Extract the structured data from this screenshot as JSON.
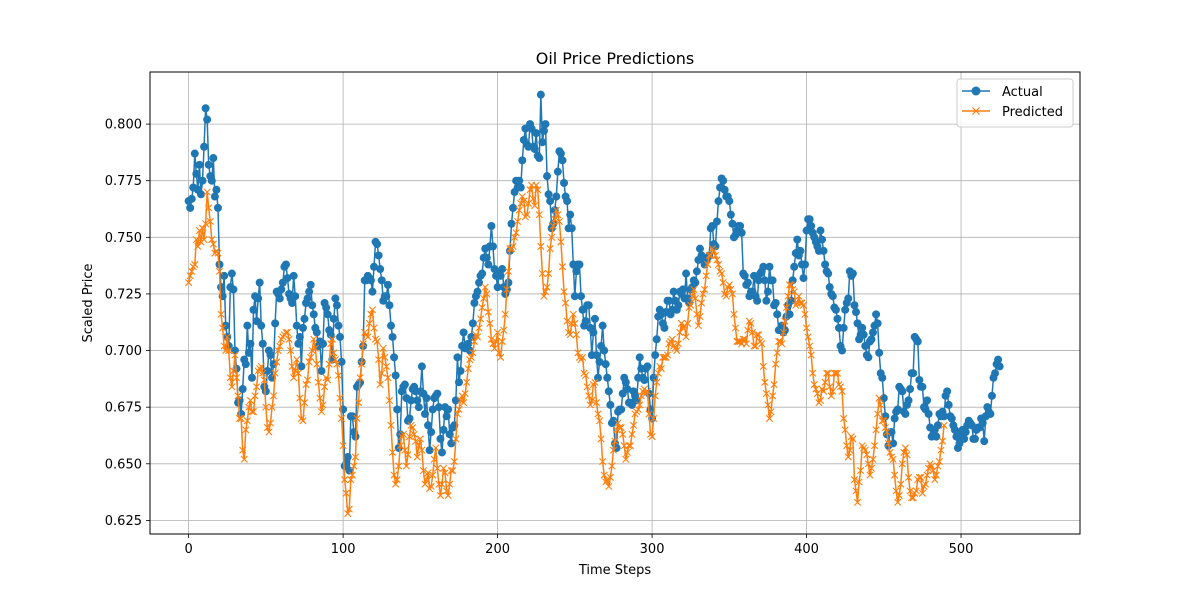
{
  "chart_data": {
    "type": "line",
    "title": "Oil Price Predictions",
    "xlabel": "Time Steps",
    "ylabel": "Scaled Price",
    "xlim": [
      -25,
      577
    ],
    "ylim": [
      0.619,
      0.823
    ],
    "xticks": [
      0,
      100,
      200,
      300,
      400,
      500
    ],
    "yticks": [
      0.625,
      0.65,
      0.675,
      0.7,
      0.725,
      0.75,
      0.775,
      0.8
    ],
    "ytick_labels": [
      "0.625",
      "0.650",
      "0.675",
      "0.700",
      "0.725",
      "0.750",
      "0.775",
      "0.800"
    ],
    "grid": true,
    "legend_position": "top-right",
    "x_step": 1,
    "series": [
      {
        "name": "Actual",
        "marker": "circle",
        "color": "#1f77b4",
        "values": [
          0.766,
          0.763,
          0.767,
          0.772,
          0.787,
          0.778,
          0.771,
          0.782,
          0.769,
          0.775,
          0.79,
          0.807,
          0.802,
          0.782,
          0.777,
          0.775,
          0.785,
          0.768,
          0.771,
          0.763,
          0.738,
          0.728,
          0.724,
          0.733,
          0.711,
          0.706,
          0.702,
          0.728,
          0.734,
          0.727,
          0.7,
          0.692,
          0.677,
          0.678,
          0.672,
          0.683,
          0.696,
          0.694,
          0.711,
          0.699,
          0.703,
          0.688,
          0.718,
          0.724,
          0.713,
          0.723,
          0.73,
          0.711,
          0.703,
          0.684,
          0.682,
          0.691,
          0.7,
          0.698,
          0.688,
          0.694,
          0.712,
          0.726,
          0.725,
          0.723,
          0.727,
          0.73,
          0.737,
          0.738,
          0.732,
          0.725,
          0.723,
          0.721,
          0.733,
          0.724,
          0.711,
          0.703,
          0.706,
          0.693,
          0.71,
          0.714,
          0.721,
          0.723,
          0.726,
          0.729,
          0.72,
          0.716,
          0.71,
          0.708,
          0.702,
          0.704,
          0.691,
          0.703,
          0.721,
          0.719,
          0.716,
          0.709,
          0.707,
          0.696,
          0.714,
          0.723,
          0.72,
          0.711,
          0.706,
          0.695,
          0.674,
          0.649,
          0.65,
          0.653,
          0.647,
          0.671,
          0.671,
          0.664,
          0.662,
          0.684,
          0.685,
          0.686,
          0.695,
          0.702,
          0.731,
          0.731,
          0.733,
          0.732,
          0.731,
          0.726,
          0.737,
          0.748,
          0.747,
          0.742,
          0.736,
          0.731,
          0.722,
          0.724,
          0.724,
          0.729,
          0.72,
          0.711,
          0.706,
          0.697,
          0.689,
          0.674,
          0.657,
          0.663,
          0.682,
          0.684,
          0.685,
          0.679,
          0.669,
          0.67,
          0.678,
          0.683,
          0.684,
          0.682,
          0.678,
          0.675,
          0.682,
          0.693,
          0.681,
          0.672,
          0.679,
          0.667,
          0.656,
          0.664,
          0.674,
          0.679,
          0.68,
          0.681,
          0.675,
          0.661,
          0.655,
          0.665,
          0.675,
          0.671,
          0.674,
          0.663,
          0.659,
          0.666,
          0.667,
          0.678,
          0.697,
          0.686,
          0.691,
          0.702,
          0.708,
          0.701,
          0.701,
          0.703,
          0.7,
          0.706,
          0.712,
          0.721,
          0.724,
          0.726,
          0.73,
          0.733,
          0.734,
          0.741,
          0.745,
          0.741,
          0.738,
          0.746,
          0.755,
          0.746,
          0.736,
          0.733,
          0.728,
          0.734,
          0.733,
          0.736,
          0.728,
          0.725,
          0.727,
          0.73,
          0.744,
          0.756,
          0.763,
          0.77,
          0.775,
          0.772,
          0.775,
          0.772,
          0.784,
          0.793,
          0.798,
          0.791,
          0.79,
          0.8,
          0.798,
          0.79,
          0.789,
          0.796,
          0.786,
          0.785,
          0.813,
          0.792,
          0.797,
          0.8,
          0.777,
          0.769,
          0.766,
          0.754,
          0.756,
          0.762,
          0.768,
          0.779,
          0.788,
          0.787,
          0.784,
          0.774,
          0.768,
          0.766,
          0.754,
          0.76,
          0.754,
          0.738,
          0.724,
          0.735,
          0.738,
          0.738,
          0.724,
          0.718,
          0.711,
          0.713,
          0.72,
          0.72,
          0.71,
          0.698,
          0.708,
          0.714,
          0.698,
          0.688,
          0.695,
          0.702,
          0.711,
          0.7,
          0.694,
          0.688,
          0.682,
          0.676,
          0.668,
          0.669,
          0.659,
          0.657,
          0.673,
          0.674,
          0.674,
          0.681,
          0.688,
          0.686,
          0.683,
          0.677,
          0.677,
          0.676,
          0.682,
          0.68,
          0.678,
          0.688,
          0.697,
          0.692,
          0.688,
          0.687,
          0.692,
          0.693,
          0.681,
          0.674,
          0.67,
          0.688,
          0.698,
          0.705,
          0.715,
          0.718,
          0.716,
          0.712,
          0.71,
          0.717,
          0.722,
          0.722,
          0.716,
          0.718,
          0.726,
          0.722,
          0.718,
          0.72,
          0.726,
          0.725,
          0.727,
          0.723,
          0.734,
          0.723,
          0.721,
          0.727,
          0.728,
          0.731,
          0.73,
          0.735,
          0.74,
          0.745,
          0.742,
          0.741,
          0.738,
          0.74,
          0.741,
          0.742,
          0.754,
          0.755,
          0.747,
          0.746,
          0.757,
          0.766,
          0.772,
          0.776,
          0.775,
          0.771,
          0.768,
          0.768,
          0.766,
          0.76,
          0.756,
          0.75,
          0.751,
          0.753,
          0.755,
          0.755,
          0.752,
          0.734,
          0.733,
          0.729,
          0.73,
          0.724,
          0.726,
          0.726,
          0.733,
          0.724,
          0.722,
          0.731,
          0.734,
          0.735,
          0.737,
          0.731,
          0.722,
          0.726,
          0.737,
          0.731,
          0.731,
          0.72,
          0.721,
          0.716,
          0.709,
          0.709,
          0.711,
          0.708,
          0.709,
          0.715,
          0.72,
          0.716,
          0.722,
          0.731,
          0.737,
          0.743,
          0.749,
          0.742,
          0.744,
          0.738,
          0.732,
          0.738,
          0.753,
          0.758,
          0.758,
          0.755,
          0.752,
          0.75,
          0.748,
          0.746,
          0.744,
          0.753,
          0.749,
          0.744,
          0.738,
          0.735,
          0.734,
          0.728,
          0.725,
          0.724,
          0.719,
          0.718,
          0.714,
          0.71,
          0.702,
          0.7,
          0.71,
          0.718,
          0.721,
          0.723,
          0.735,
          0.733,
          0.734,
          0.72,
          0.717,
          0.712,
          0.705,
          0.707,
          0.71,
          0.707,
          0.702,
          0.698,
          0.697,
          0.704,
          0.705,
          0.708,
          0.711,
          0.716,
          0.712,
          0.699,
          0.69,
          0.688,
          0.679,
          0.671,
          0.663,
          0.658,
          0.664,
          0.664,
          0.659,
          0.67,
          0.673,
          0.674,
          0.684,
          0.683,
          0.682,
          0.673,
          0.672,
          0.676,
          0.678,
          0.683,
          0.69,
          0.69,
          0.706,
          0.705,
          0.704,
          0.687,
          0.684,
          0.684,
          0.675,
          0.674,
          0.678,
          0.672,
          0.666,
          0.662,
          0.663,
          0.665,
          0.662,
          0.667,
          0.672,
          0.671,
          0.673,
          0.671,
          0.68,
          0.682,
          0.676,
          0.671,
          0.67,
          0.667,
          0.665,
          0.662,
          0.657,
          0.659,
          0.664,
          0.665,
          0.661,
          0.664,
          0.667,
          0.669,
          0.668,
          0.667,
          0.661,
          0.661,
          0.665,
          0.666,
          0.666,
          0.67,
          0.668,
          0.66,
          0.671,
          0.675,
          0.673,
          0.672,
          0.68,
          0.688,
          0.69,
          0.694,
          0.696,
          0.693
        ]
      },
      {
        "name": "Predicted",
        "marker": "x",
        "color": "#ff7f0e",
        "values": [
          0.73,
          0.733,
          0.735,
          0.737,
          0.738,
          0.749,
          0.746,
          0.753,
          0.748,
          0.754,
          0.749,
          0.756,
          0.77,
          0.763,
          0.757,
          0.749,
          0.747,
          0.743,
          0.744,
          0.743,
          0.735,
          0.716,
          0.71,
          0.702,
          0.7,
          0.706,
          0.7,
          0.688,
          0.684,
          0.691,
          0.698,
          0.688,
          0.68,
          0.67,
          0.67,
          0.656,
          0.652,
          0.665,
          0.669,
          0.675,
          0.678,
          0.673,
          0.673,
          0.68,
          0.684,
          0.691,
          0.692,
          0.693,
          0.69,
          0.687,
          0.675,
          0.666,
          0.664,
          0.668,
          0.675,
          0.68,
          0.69,
          0.695,
          0.7,
          0.702,
          0.705,
          0.706,
          0.707,
          0.708,
          0.708,
          0.705,
          0.7,
          0.693,
          0.688,
          0.691,
          0.696,
          0.69,
          0.679,
          0.67,
          0.669,
          0.677,
          0.685,
          0.687,
          0.695,
          0.697,
          0.7,
          0.705,
          0.701,
          0.694,
          0.686,
          0.679,
          0.673,
          0.676,
          0.684,
          0.688,
          0.687,
          0.694,
          0.703,
          0.705,
          0.699,
          0.696,
          0.694,
          0.689,
          0.679,
          0.67,
          0.658,
          0.643,
          0.637,
          0.628,
          0.63,
          0.643,
          0.645,
          0.649,
          0.653,
          0.67,
          0.677,
          0.688,
          0.694,
          0.703,
          0.708,
          0.707,
          0.706,
          0.712,
          0.716,
          0.718,
          0.71,
          0.705,
          0.704,
          0.696,
          0.685,
          0.69,
          0.701,
          0.697,
          0.693,
          0.688,
          0.678,
          0.667,
          0.655,
          0.645,
          0.641,
          0.643,
          0.649,
          0.658,
          0.662,
          0.663,
          0.656,
          0.649,
          0.654,
          0.662,
          0.667,
          0.666,
          0.663,
          0.66,
          0.653,
          0.658,
          0.661,
          0.656,
          0.647,
          0.641,
          0.643,
          0.646,
          0.639,
          0.64,
          0.645,
          0.652,
          0.657,
          0.648,
          0.641,
          0.636,
          0.641,
          0.648,
          0.646,
          0.638,
          0.636,
          0.641,
          0.647,
          0.647,
          0.651,
          0.661,
          0.672,
          0.674,
          0.678,
          0.68,
          0.677,
          0.681,
          0.686,
          0.692,
          0.696,
          0.697,
          0.699,
          0.704,
          0.707,
          0.706,
          0.71,
          0.714,
          0.719,
          0.723,
          0.728,
          0.725,
          0.717,
          0.712,
          0.705,
          0.703,
          0.701,
          0.704,
          0.708,
          0.699,
          0.697,
          0.704,
          0.709,
          0.716,
          0.727,
          0.735,
          0.745,
          0.745,
          0.746,
          0.75,
          0.752,
          0.757,
          0.762,
          0.765,
          0.768,
          0.766,
          0.759,
          0.76,
          0.765,
          0.771,
          0.773,
          0.767,
          0.764,
          0.773,
          0.771,
          0.76,
          0.746,
          0.734,
          0.724,
          0.726,
          0.728,
          0.734,
          0.745,
          0.75,
          0.755,
          0.758,
          0.762,
          0.76,
          0.757,
          0.748,
          0.737,
          0.726,
          0.721,
          0.713,
          0.708,
          0.707,
          0.712,
          0.716,
          0.712,
          0.707,
          0.699,
          0.697,
          0.696,
          0.697,
          0.69,
          0.689,
          0.684,
          0.68,
          0.676,
          0.678,
          0.685,
          0.686,
          0.677,
          0.672,
          0.669,
          0.661,
          0.651,
          0.645,
          0.642,
          0.643,
          0.64,
          0.644,
          0.649,
          0.656,
          0.66,
          0.665,
          0.668,
          0.666,
          0.666,
          0.663,
          0.658,
          0.652,
          0.655,
          0.658,
          0.658,
          0.663,
          0.667,
          0.672,
          0.673,
          0.674,
          0.676,
          0.68,
          0.682,
          0.683,
          0.681,
          0.682,
          0.672,
          0.663,
          0.662,
          0.67,
          0.68,
          0.686,
          0.69,
          0.693,
          0.692,
          0.697,
          0.697,
          0.697,
          0.698,
          0.703,
          0.704,
          0.705,
          0.702,
          0.701,
          0.7,
          0.703,
          0.708,
          0.712,
          0.71,
          0.711,
          0.706,
          0.712,
          0.719,
          0.72,
          0.724,
          0.727,
          0.723,
          0.716,
          0.711,
          0.715,
          0.721,
          0.725,
          0.727,
          0.733,
          0.738,
          0.742,
          0.742,
          0.745,
          0.744,
          0.742,
          0.74,
          0.738,
          0.735,
          0.734,
          0.73,
          0.725,
          0.724,
          0.728,
          0.729,
          0.727,
          0.725,
          0.716,
          0.71,
          0.704,
          0.704,
          0.704,
          0.703,
          0.705,
          0.705,
          0.703,
          0.709,
          0.713,
          0.712,
          0.708,
          0.702,
          0.702,
          0.707,
          0.707,
          0.704,
          0.703,
          0.693,
          0.686,
          0.681,
          0.676,
          0.67,
          0.673,
          0.68,
          0.685,
          0.694,
          0.699,
          0.704,
          0.704,
          0.703,
          0.708,
          0.713,
          0.719,
          0.724,
          0.729,
          0.729,
          0.727,
          0.726,
          0.72,
          0.721,
          0.724,
          0.721,
          0.721,
          0.72,
          0.716,
          0.71,
          0.706,
          0.702,
          0.698,
          0.69,
          0.685,
          0.683,
          0.681,
          0.677,
          0.678,
          0.683,
          0.682,
          0.686,
          0.69,
          0.69,
          0.684,
          0.68,
          0.682,
          0.69,
          0.69,
          0.69,
          0.685,
          0.684,
          0.682,
          0.67,
          0.665,
          0.658,
          0.653,
          0.656,
          0.662,
          0.661,
          0.643,
          0.638,
          0.633,
          0.642,
          0.647,
          0.658,
          0.657,
          0.656,
          0.654,
          0.65,
          0.645,
          0.648,
          0.652,
          0.658,
          0.665,
          0.672,
          0.679,
          0.676,
          0.669,
          0.669,
          0.666,
          0.664,
          0.659,
          0.655,
          0.653,
          0.652,
          0.645,
          0.638,
          0.633,
          0.636,
          0.641,
          0.65,
          0.655,
          0.657,
          0.654,
          0.644,
          0.638,
          0.635,
          0.635,
          0.637,
          0.638,
          0.643,
          0.644,
          0.644,
          0.637,
          0.64,
          0.641,
          0.645,
          0.648,
          0.65,
          0.649,
          0.647,
          0.643,
          0.645,
          0.649,
          0.651,
          0.656,
          0.66,
          0.667
        ]
      }
    ]
  }
}
